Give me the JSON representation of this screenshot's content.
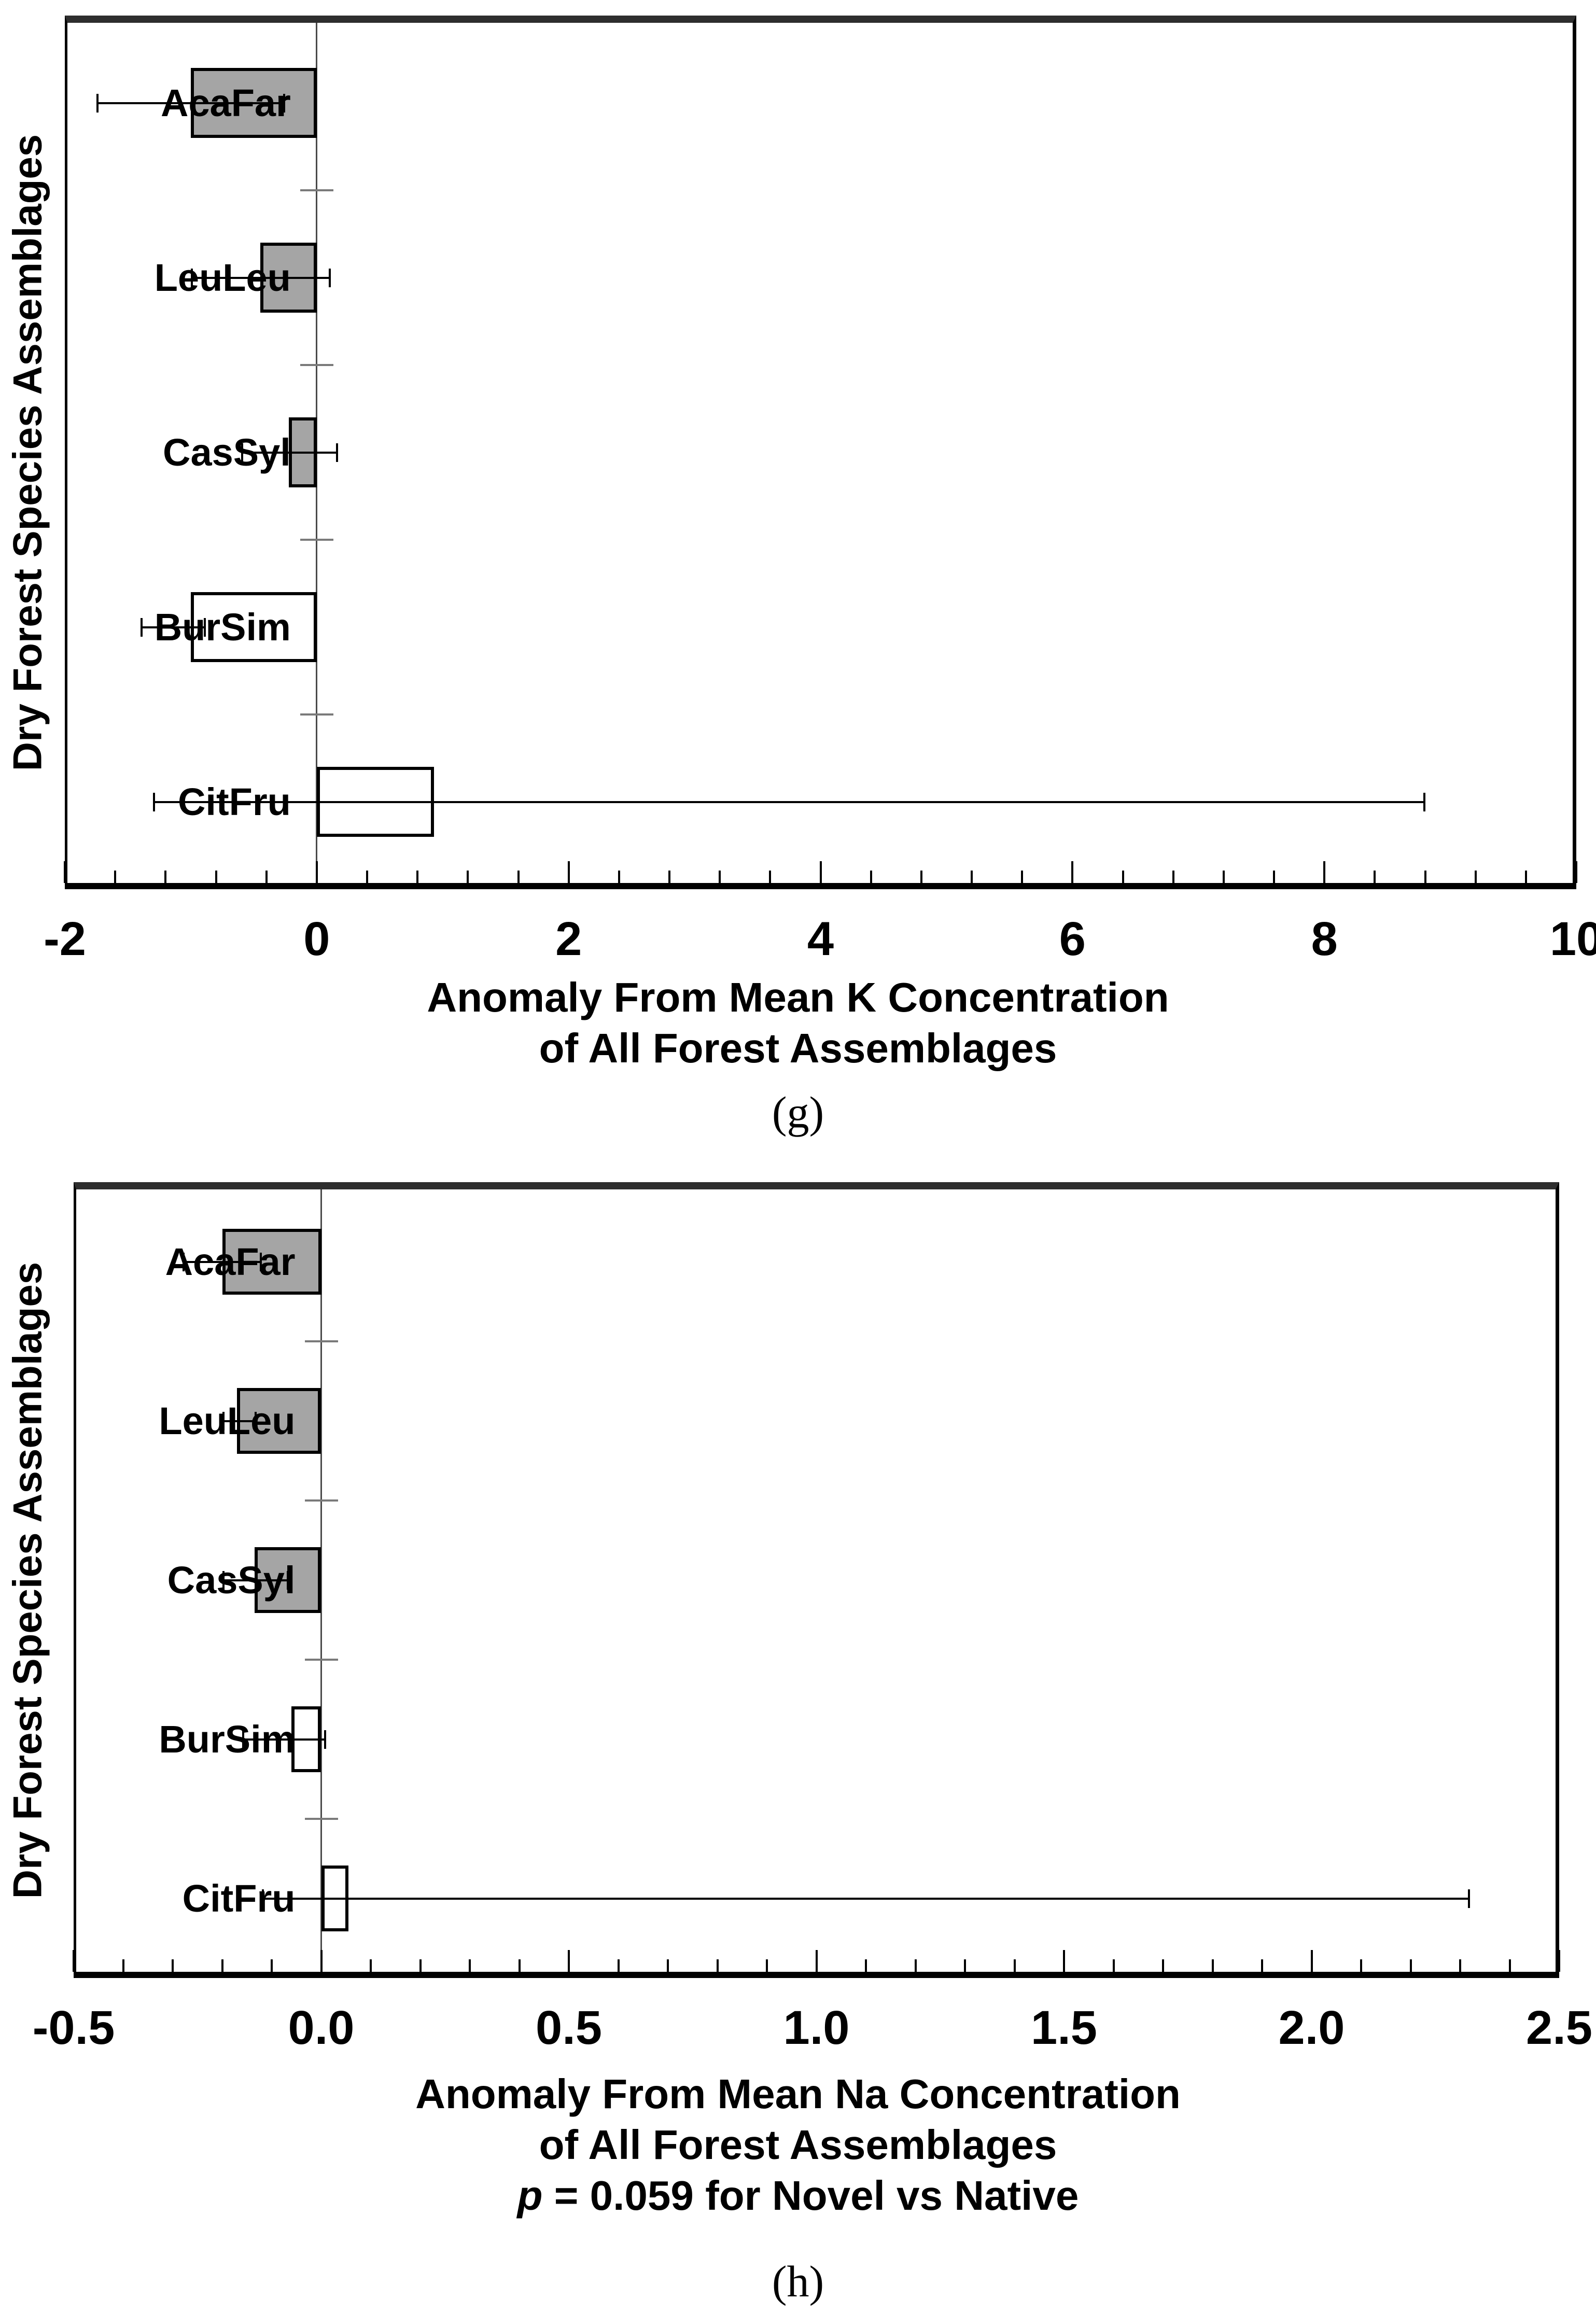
{
  "colors": {
    "bar_gray": "#a5a5a5",
    "bar_white": "#ffffff",
    "outline": "#000000",
    "zero_line": "#4a4a4a",
    "category_tick": "#7a7a7a",
    "text": "#000000",
    "background": "#ffffff"
  },
  "panels": [
    {
      "panel_label": "(g)",
      "y_axis_title": "Dry Forest Species Assemblages",
      "x_axis_title_lines": [
        "Anomaly From Mean K Concentration",
        "of All Forest Assemblages"
      ]
    },
    {
      "panel_label": "(h)",
      "y_axis_title": "Dry Forest Species Assemblages",
      "x_axis_title_lines": [
        "Anomaly From Mean Na Concentration",
        "of All Forest Assemblages"
      ],
      "p_note": {
        "italic": "p",
        "rest": " = 0.059 for Novel vs Native"
      }
    }
  ],
  "chart_data": [
    {
      "type": "bar",
      "orientation": "horizontal",
      "title": "",
      "xlabel": "Anomaly From Mean K Concentration of All Forest Assemblages",
      "ylabel": "Dry Forest Species Assemblages",
      "categories": [
        "AcaFar",
        "LeuLeu",
        "CasSyl",
        "BurSim",
        "CitFru"
      ],
      "series": [
        {
          "name": "K anomaly",
          "values": [
            -1.0,
            -0.45,
            -0.22,
            -1.0,
            0.93
          ]
        }
      ],
      "bar_fills": [
        "gray",
        "gray",
        "gray",
        "white",
        "white"
      ],
      "error_bars": [
        [
          -1.75,
          -0.25
        ],
        [
          -1.0,
          0.11
        ],
        [
          -0.6,
          0.17
        ],
        [
          -1.4,
          -0.88
        ],
        [
          -1.3,
          8.8
        ]
      ],
      "xlim": [
        -2,
        10
      ],
      "x_major_ticks": [
        -2,
        0,
        2,
        4,
        6,
        8,
        10
      ],
      "x_tick_labels": [
        "-2",
        "0",
        "2",
        "4",
        "6",
        "8",
        "10"
      ],
      "x_minor_step": 0.4,
      "grid": "off",
      "legend": "none",
      "zero_line": true
    },
    {
      "type": "bar",
      "orientation": "horizontal",
      "title": "",
      "xlabel": "Anomaly From Mean Na Concentration of All Forest Assemblages",
      "ylabel": "Dry Forest Species Assemblages",
      "categories": [
        "AcaFar",
        "LeuLeu",
        "CasSyl",
        "BurSim",
        "CitFru"
      ],
      "series": [
        {
          "name": "Na anomaly",
          "values": [
            -0.2,
            -0.17,
            -0.135,
            -0.06,
            0.055
          ]
        }
      ],
      "bar_fills": [
        "gray",
        "gray",
        "gray",
        "white",
        "white"
      ],
      "error_bars": [
        [
          -0.28,
          -0.12
        ],
        [
          -0.2,
          -0.13
        ],
        [
          -0.2,
          -0.065
        ],
        [
          -0.16,
          0.01
        ],
        [
          -0.12,
          2.32
        ]
      ],
      "xlim": [
        -0.5,
        2.5
      ],
      "x_major_ticks": [
        -0.5,
        0.0,
        0.5,
        1.0,
        1.5,
        2.0,
        2.5
      ],
      "x_tick_labels": [
        "-0.5",
        "0.0",
        "0.5",
        "1.0",
        "1.5",
        "2.0",
        "2.5"
      ],
      "x_minor_step": 0.1,
      "grid": "off",
      "legend": "none",
      "zero_line": true,
      "annotation": "p = 0.059 for Novel vs Native"
    }
  ]
}
